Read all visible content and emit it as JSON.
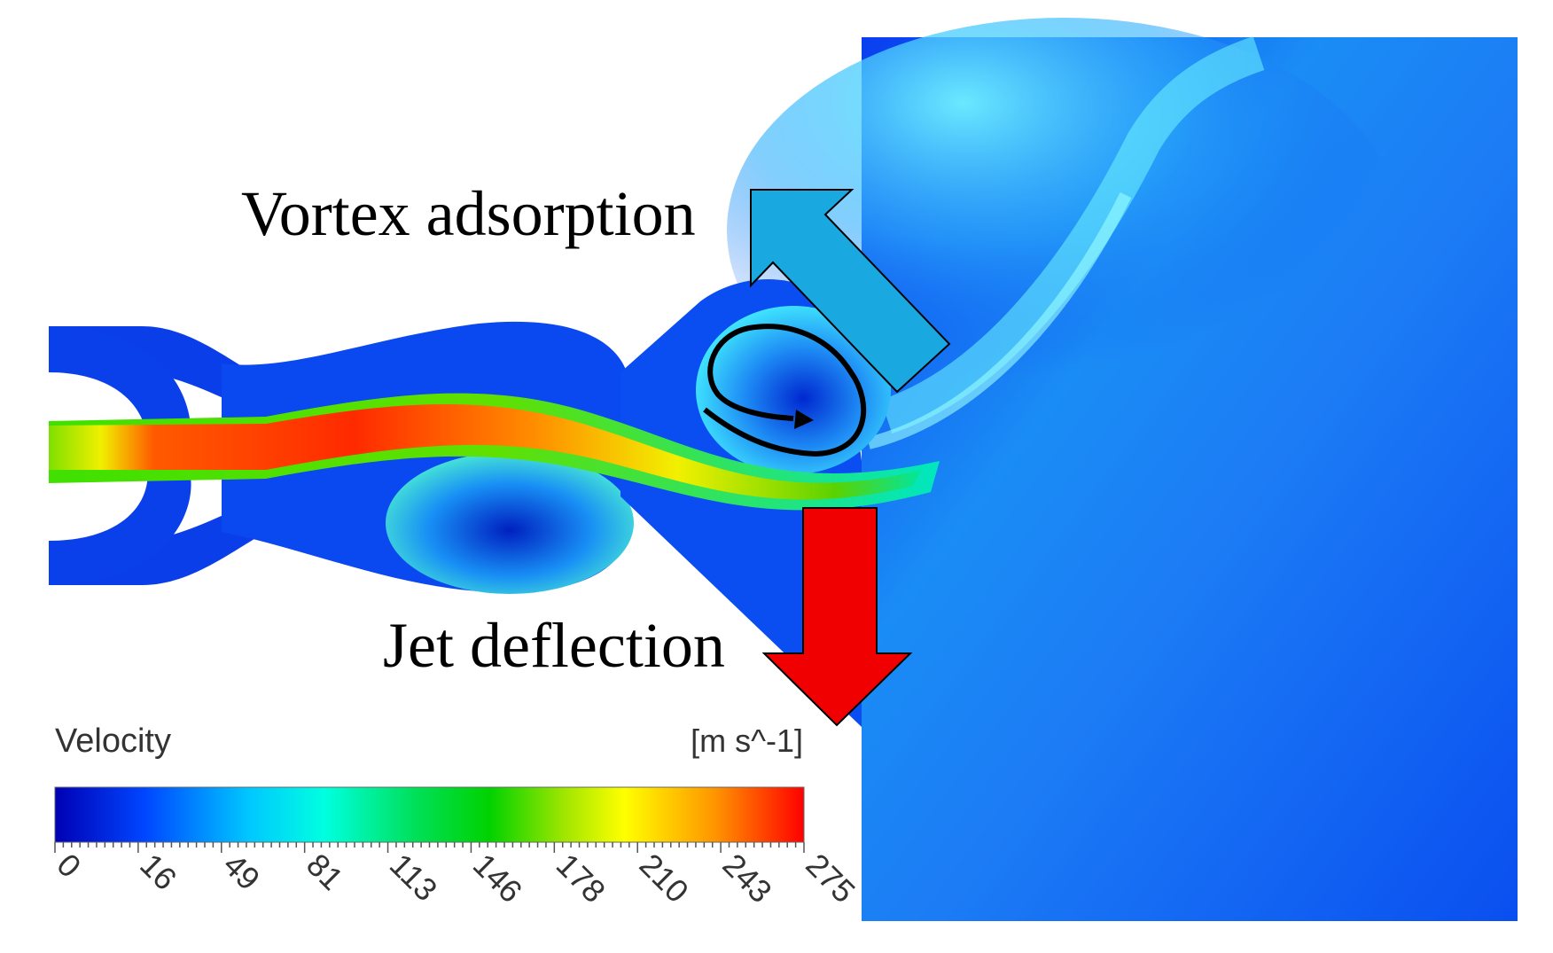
{
  "annotations": {
    "vortex_label": "Vortex adsorption",
    "jet_label": "Jet deflection"
  },
  "legend": {
    "title": "Velocity",
    "unit": "[m s^-1]",
    "ticks": [
      "0",
      "16",
      "49",
      "81",
      "113",
      "146",
      "178",
      "210",
      "243",
      "275"
    ],
    "tick_values": [
      0,
      16,
      49,
      81,
      113,
      146,
      178,
      210,
      243,
      275
    ],
    "range": [
      0,
      275
    ],
    "colormap": [
      "#0000c8",
      "#0050ff",
      "#00d2ff",
      "#00ffe6",
      "#00e640",
      "#5ad200",
      "#f0f000",
      "#ffa000",
      "#ff5a00",
      "#e60000"
    ]
  },
  "colors": {
    "vortex_arrow": "#1aa8e0",
    "jet_arrow": "#f00000",
    "field_blue": "#0a4ff0"
  }
}
